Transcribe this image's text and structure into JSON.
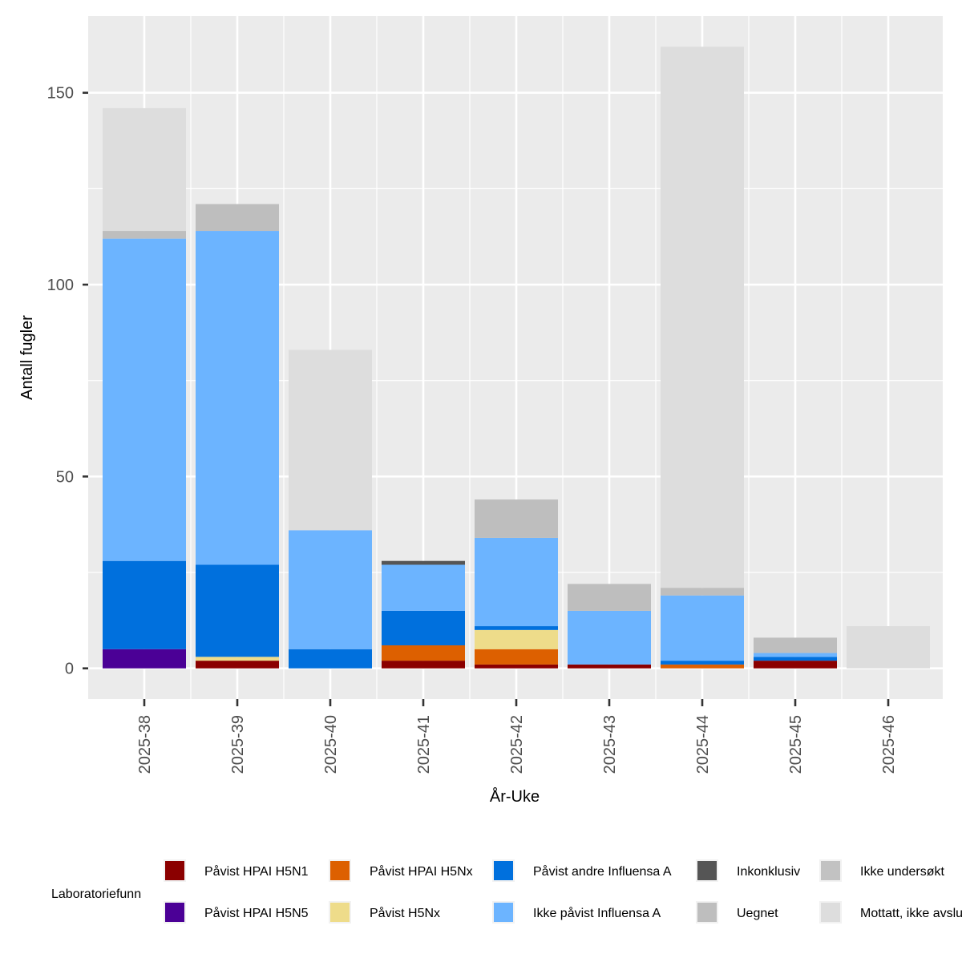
{
  "chart_data": {
    "type": "bar",
    "stacked": true,
    "xlabel": "År-Uke",
    "ylabel": "Antall fugler",
    "ylim": [
      -8,
      170
    ],
    "yticks": [
      0,
      50,
      100,
      150
    ],
    "grid": true,
    "categories": [
      "2025-38",
      "2025-39",
      "2025-40",
      "2025-41",
      "2025-42",
      "2025-43",
      "2025-44",
      "2025-45",
      "2025-46"
    ],
    "series": [
      {
        "name": "Påvist HPAI H5N1",
        "color": "#8B0000",
        "values": [
          0,
          2,
          0,
          2,
          1,
          1,
          0,
          2,
          0
        ]
      },
      {
        "name": "Påvist HPAI H5N5",
        "color": "#4B0096",
        "values": [
          5,
          0,
          0,
          0,
          0,
          0,
          0,
          0,
          0
        ]
      },
      {
        "name": "Påvist HPAI H5Nx",
        "color": "#DD6000",
        "values": [
          0,
          0,
          0,
          4,
          4,
          0,
          1,
          0,
          0
        ]
      },
      {
        "name": "Påvist H5Nx",
        "color": "#EEDC8A",
        "values": [
          0,
          1,
          0,
          0,
          5,
          0,
          0,
          0,
          0
        ]
      },
      {
        "name": "Påvist andre Influensa A",
        "color": "#0070DD",
        "values": [
          23,
          24,
          5,
          9,
          1,
          0,
          1,
          1,
          0
        ]
      },
      {
        "name": "Ikke påvist Influensa A",
        "color": "#6CB4FF",
        "values": [
          84,
          87,
          31,
          12,
          23,
          14,
          17,
          1,
          0
        ]
      },
      {
        "name": "Inkonklusiv",
        "color": "#555555",
        "values": [
          0,
          0,
          0,
          1,
          0,
          0,
          0,
          0,
          0
        ]
      },
      {
        "name": "Uegnet",
        "color": "#BEBEBE",
        "values": [
          2,
          7,
          0,
          0,
          10,
          7,
          2,
          4,
          0
        ]
      },
      {
        "name": "Ikke undersøkt",
        "color": "#C2C2C2",
        "values": [
          0,
          0,
          0,
          0,
          0,
          0,
          0,
          0,
          0
        ]
      },
      {
        "name": "Mottatt, ikke avsluttet",
        "color": "#DDDDDD",
        "values": [
          32,
          0,
          47,
          0,
          0,
          0,
          141,
          0,
          11
        ]
      }
    ],
    "legend": {
      "title": "Laboratoriefunn",
      "position": "bottom",
      "order": [
        "Påvist HPAI H5N1",
        "Påvist HPAI H5Nx",
        "Påvist andre Influensa A",
        "Inkonklusiv",
        "Ikke undersøkt",
        "Påvist HPAI H5N5",
        "Påvist H5Nx",
        "Ikke påvist Influensa A",
        "Uegnet",
        "Mottatt, ikke avsluttet"
      ],
      "labels": [
        "Påvist HPAI H5N1",
        "Påvist HPAI H5Nx",
        "Påvist andre Influensa A",
        "Inkonklusiv",
        "Ikke undersøkt",
        "Påvist HPAI H5N5",
        "Påvist H5Nx",
        "Ikke påvist Influensa A",
        "Uegnet",
        "Mottatt, ikke avslu"
      ]
    }
  }
}
